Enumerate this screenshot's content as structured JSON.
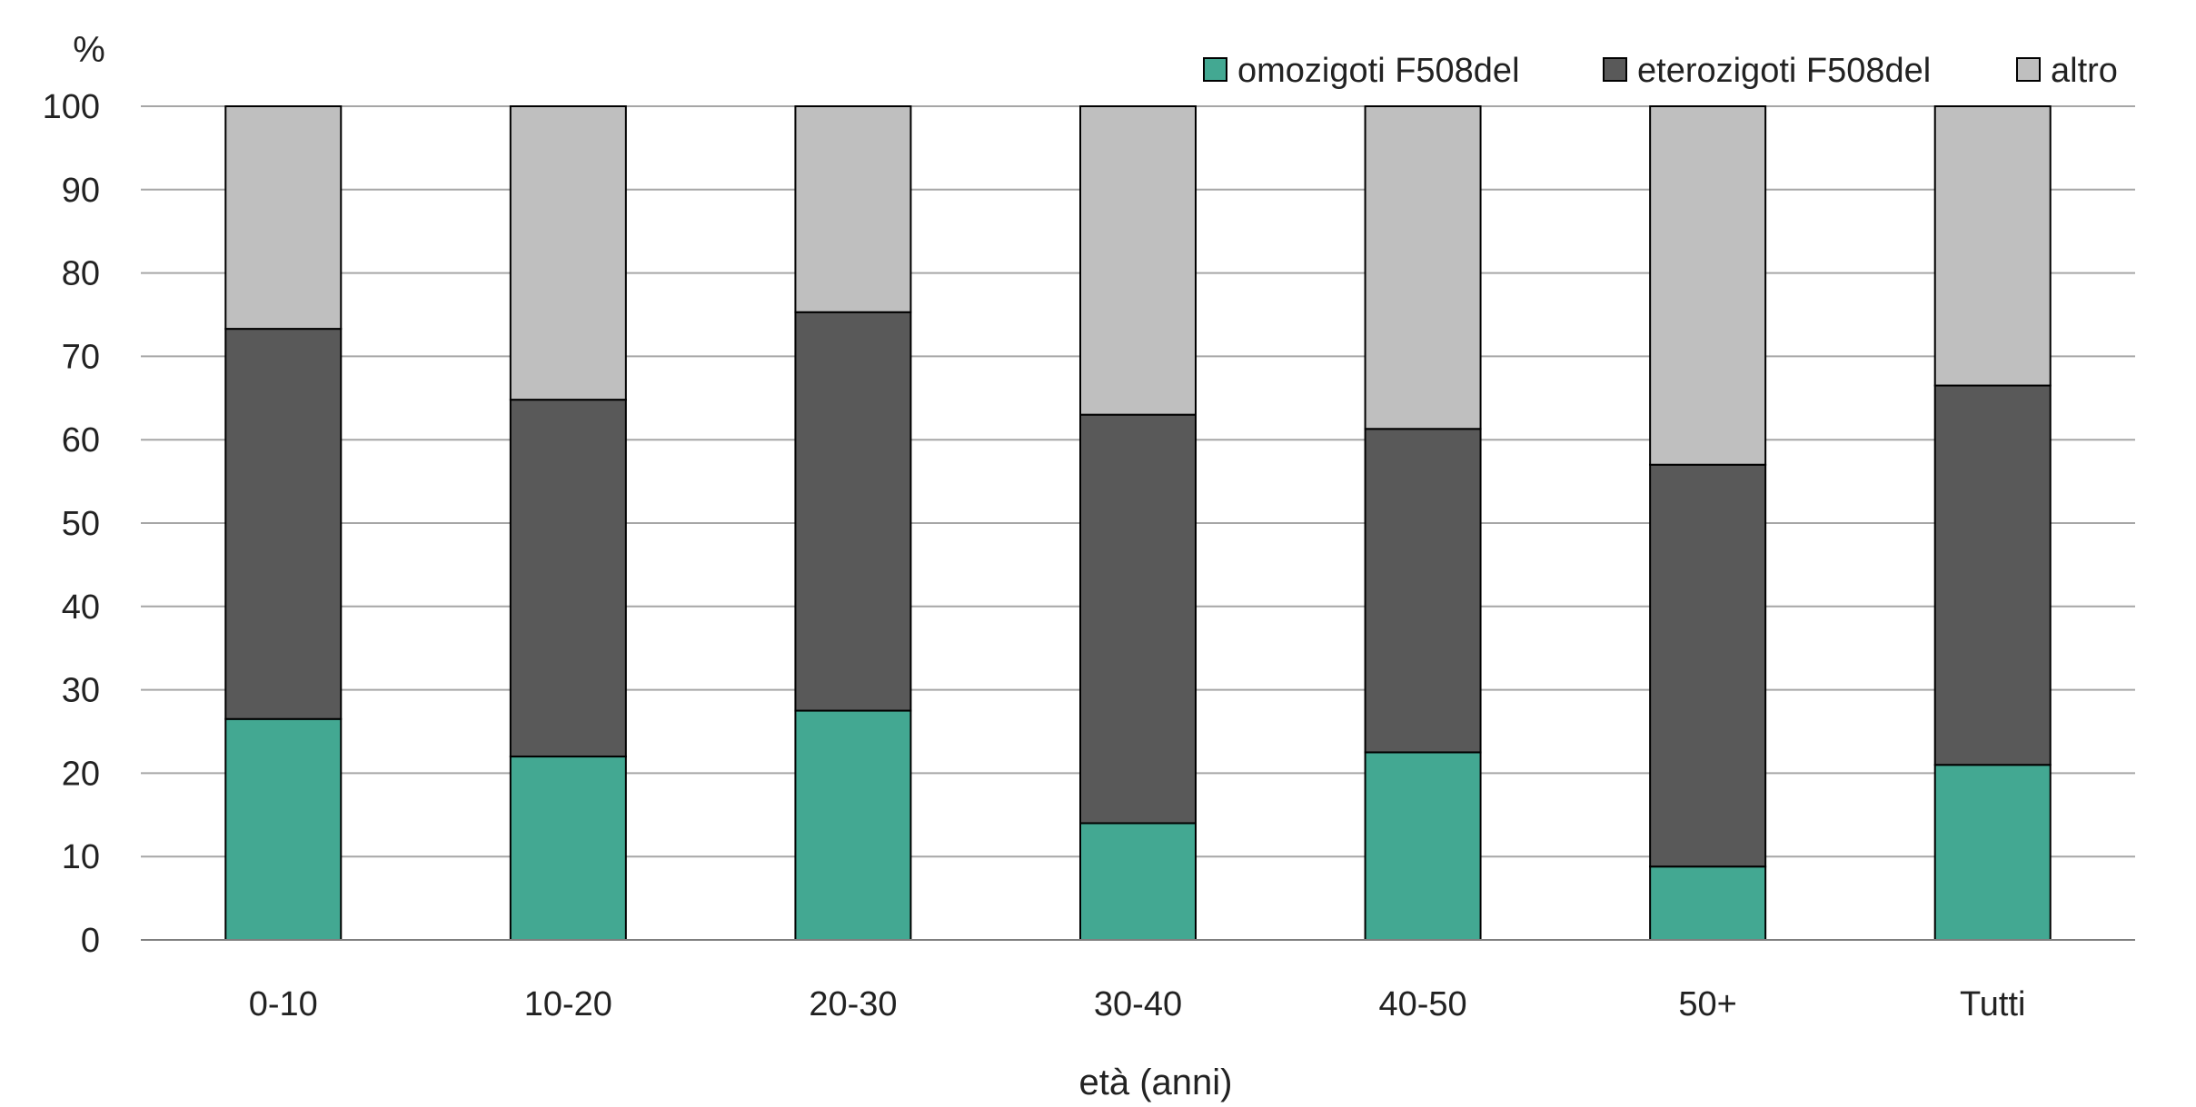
{
  "chart_data": {
    "type": "bar",
    "stacked": true,
    "categories": [
      "0-10",
      "10-20",
      "20-30",
      "30-40",
      "40-50",
      "50+",
      "Tutti"
    ],
    "series": [
      {
        "name": "omozigoti F508del",
        "values": [
          26.5,
          22.0,
          27.5,
          14.0,
          22.5,
          8.8,
          21.0
        ],
        "color": "#43a892"
      },
      {
        "name": "eterozigoti F508del",
        "values": [
          46.8,
          42.8,
          47.8,
          49.0,
          38.8,
          48.2,
          45.5
        ],
        "color": "#595959"
      },
      {
        "name": "altro",
        "values": [
          26.7,
          35.2,
          24.7,
          37.0,
          38.7,
          43.0,
          33.5
        ],
        "color": "#bfbfbf"
      }
    ],
    "ylabel": "%",
    "xlabel": "età (anni)",
    "ylim": [
      0,
      100
    ],
    "yticks": [
      0,
      10,
      20,
      30,
      40,
      50,
      60,
      70,
      80,
      90,
      100
    ],
    "grid": true,
    "legend_position": "top-right"
  }
}
